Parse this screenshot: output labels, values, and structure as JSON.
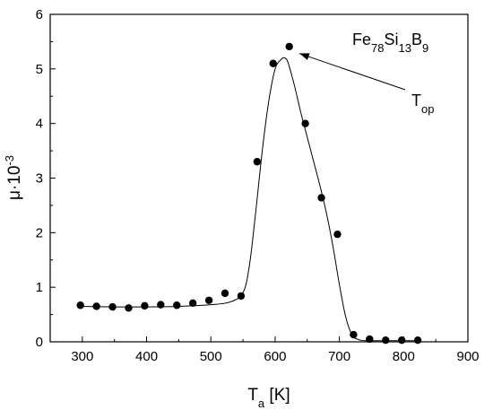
{
  "chart_data": {
    "type": "scatter",
    "xlabel": "T",
    "xlabel_sub": "a",
    "xlabel_unit": " [K]",
    "ylabel": "μ·10",
    "ylabel_sup": "-3",
    "xlim": [
      250,
      900
    ],
    "ylim": [
      0,
      6
    ],
    "xticks": [
      300,
      400,
      500,
      600,
      700,
      800,
      900
    ],
    "yticks": [
      0,
      1,
      2,
      3,
      4,
      5,
      6
    ],
    "grid": false,
    "legend": "none",
    "series": [
      {
        "kind": "points",
        "x": [
          297,
          322,
          347,
          372,
          397,
          422,
          447,
          472,
          497,
          522,
          547,
          572,
          597,
          622,
          647,
          672,
          697,
          722,
          747,
          772,
          797,
          822
        ],
        "y": [
          0.67,
          0.65,
          0.64,
          0.62,
          0.66,
          0.68,
          0.67,
          0.71,
          0.76,
          0.89,
          0.84,
          3.3,
          5.1,
          5.41,
          4.0,
          2.64,
          1.97,
          0.13,
          0.05,
          0.03,
          0.03,
          0.03
        ]
      },
      {
        "kind": "fit-line",
        "x": [
          297,
          350,
          400,
          450,
          500,
          530,
          550,
          560,
          570,
          580,
          590,
          600,
          610,
          615,
          620,
          630,
          640,
          650,
          660,
          670,
          680,
          690,
          700,
          710,
          720,
          730,
          740,
          760,
          790,
          820
        ],
        "y": [
          0.65,
          0.64,
          0.64,
          0.65,
          0.68,
          0.73,
          0.9,
          1.4,
          2.4,
          3.5,
          4.4,
          5.0,
          5.18,
          5.2,
          5.12,
          4.7,
          4.2,
          3.75,
          3.3,
          2.85,
          2.35,
          1.75,
          1.05,
          0.45,
          0.12,
          0.04,
          0.02,
          0.02,
          0.02,
          0.02
        ]
      }
    ],
    "annotations": {
      "compound": {
        "parts": [
          {
            "text": "Fe",
            "sub": false
          },
          {
            "text": "78",
            "sub": true
          },
          {
            "text": "Si",
            "sub": false
          },
          {
            "text": "13",
            "sub": true
          },
          {
            "text": "B",
            "sub": false
          },
          {
            "text": "9",
            "sub": true
          }
        ]
      },
      "top_label": {
        "main": "T",
        "sub": "op",
        "arrow_target": [
          625,
          5.35
        ]
      }
    }
  }
}
